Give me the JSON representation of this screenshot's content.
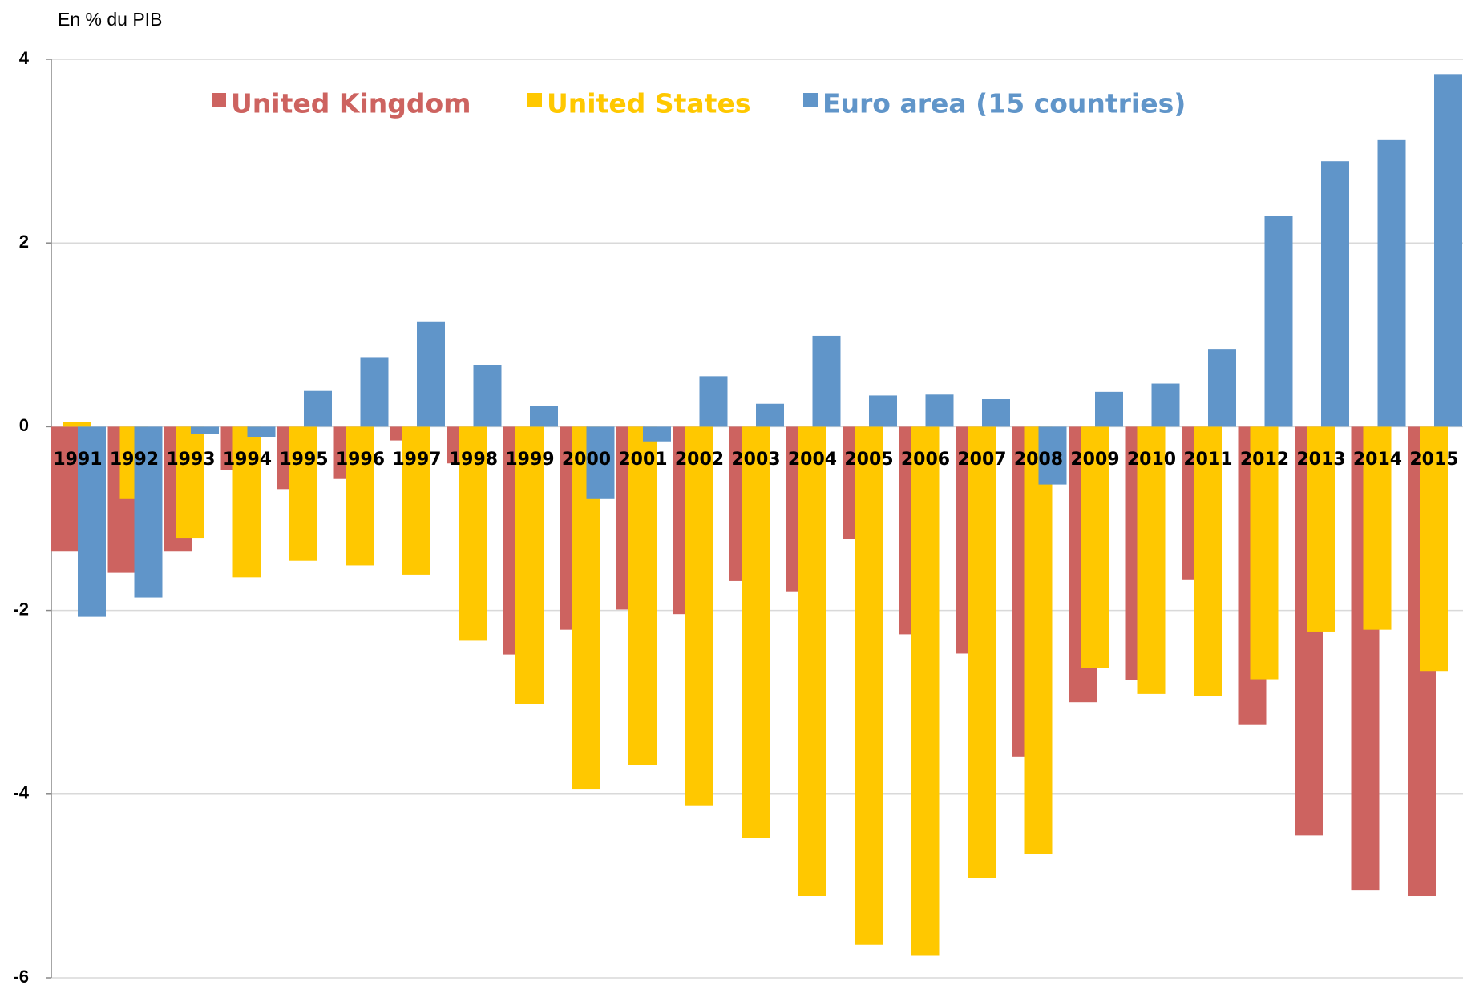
{
  "chart_data": {
    "type": "bar",
    "y_label": "En % du PIB",
    "categories": [
      "1991",
      "1992",
      "1993",
      "1994",
      "1995",
      "1996",
      "1997",
      "1998",
      "1999",
      "2000",
      "2001",
      "2002",
      "2003",
      "2004",
      "2005",
      "2006",
      "2007",
      "2008",
      "2009",
      "2010",
      "2011",
      "2012",
      "2013",
      "2014",
      "2015"
    ],
    "series": [
      {
        "name": "United Kingdom",
        "color": "#cd6360",
        "values": [
          -1.36,
          -1.59,
          -1.36,
          -0.47,
          -0.68,
          -0.57,
          -0.15,
          -0.4,
          -2.48,
          -2.21,
          -1.99,
          -2.04,
          -1.68,
          -1.8,
          -1.22,
          -2.26,
          -2.47,
          -3.59,
          -3.0,
          -2.76,
          -1.67,
          -3.24,
          -4.45,
          -5.05,
          -5.11
        ]
      },
      {
        "name": "United States",
        "color": "#ffc800",
        "values": [
          0.05,
          -0.78,
          -1.21,
          -1.64,
          -1.46,
          -1.51,
          -1.61,
          -2.33,
          -3.02,
          -3.95,
          -3.68,
          -4.13,
          -4.48,
          -5.11,
          -5.64,
          -5.76,
          -4.91,
          -4.65,
          -2.63,
          -2.91,
          -2.93,
          -2.75,
          -2.23,
          -2.21,
          -2.66
        ]
      },
      {
        "name": "Euro area (15 countries)",
        "color": "#6095c9",
        "values": [
          -2.07,
          -1.86,
          -0.08,
          -0.11,
          0.39,
          0.75,
          1.14,
          0.67,
          0.23,
          -0.78,
          -0.16,
          0.55,
          0.25,
          0.99,
          0.34,
          0.35,
          0.3,
          -0.63,
          0.38,
          0.47,
          0.84,
          2.29,
          2.89,
          3.12,
          3.84
        ]
      }
    ],
    "ylim": [
      -6,
      4
    ],
    "yticks": [
      -6,
      -4,
      -2,
      0,
      2,
      4
    ],
    "grid": true
  }
}
